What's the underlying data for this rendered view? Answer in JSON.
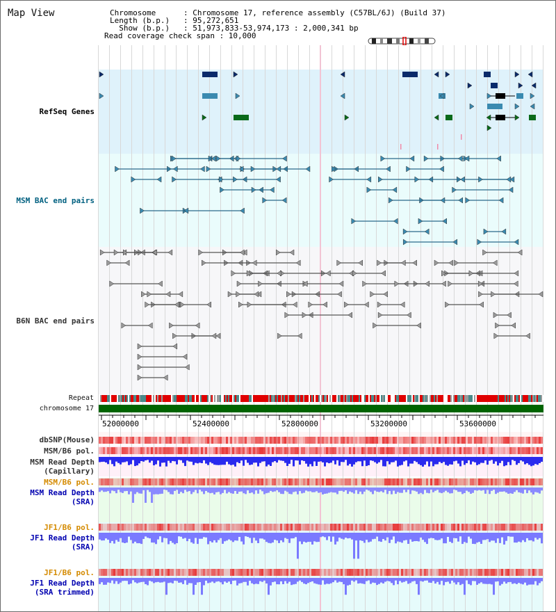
{
  "header": {
    "title": "Map View",
    "info_lines": [
      "Chromosome      : Chromosome 17, reference assembly (C57BL/6J) (Build 37)",
      "Length (b.p.)   : 95,272,651",
      "  Show (b.p.)   : 51,973,833-53,974,173 : 2,000,341 bp",
      "Read coverage check span : 10,000"
    ]
  },
  "tracks": [
    {
      "id": "refseq",
      "label": "RefSeq Genes",
      "color": "#0000aa",
      "bg": "#dff2fb"
    },
    {
      "id": "msm_bac",
      "label": "MSM BAC end pairs",
      "color": "#006080",
      "bg": "#eafcfc"
    },
    {
      "id": "b6n_bac",
      "label": "B6N BAC end pairs",
      "color": "#333333",
      "bg": "#f7f7f9"
    }
  ],
  "small_tracks": {
    "repeat": "Repeat",
    "chromosome": "chromosome 17"
  },
  "axis": {
    "ticks": [
      "52000000",
      "52400000",
      "52800000",
      "53200000",
      "53600000"
    ]
  },
  "lower_tracks": [
    {
      "id": "dbsnp",
      "label": "dbSNP(Mouse)",
      "color": "#000000"
    },
    {
      "id": "msm_pol_1",
      "label": "MSM/B6 pol.",
      "color": "#000000"
    },
    {
      "id": "msm_depth_cap",
      "label": "MSM Read Depth\n(Capillary)",
      "color": "#000000"
    },
    {
      "id": "msm_pol_2",
      "label": "MSM/B6 pol.",
      "color": "#d48a00"
    },
    {
      "id": "msm_depth_sra",
      "label": "MSM Read Depth\n(SRA)",
      "color": "#0000b0"
    },
    {
      "id": "jf1_pol_1",
      "label": "JF1/B6 pol.",
      "color": "#d48a00"
    },
    {
      "id": "jf1_depth_sra",
      "label": "JF1 Read Depth\n(SRA)",
      "color": "#0000b0"
    },
    {
      "id": "jf1_pol_2",
      "label": "JF1/B6 pol.",
      "color": "#d48a00"
    },
    {
      "id": "jf1_depth_trim",
      "label": "JF1 Read Depth\n(SRA trimmed)",
      "color": "#0000b0"
    }
  ],
  "colors": {
    "refseq_dark": "#0a2a6a",
    "refseq_mid": "#3a8ab0",
    "refseq_green": "#0a6a1a",
    "msm_line": "#2a6a8a",
    "b6n_line": "#555555",
    "chromosome_bar": "#006400",
    "pol_red": "#e83a3a",
    "depth_blue": "#2a2aee",
    "depth_light": "#7a7aff"
  }
}
